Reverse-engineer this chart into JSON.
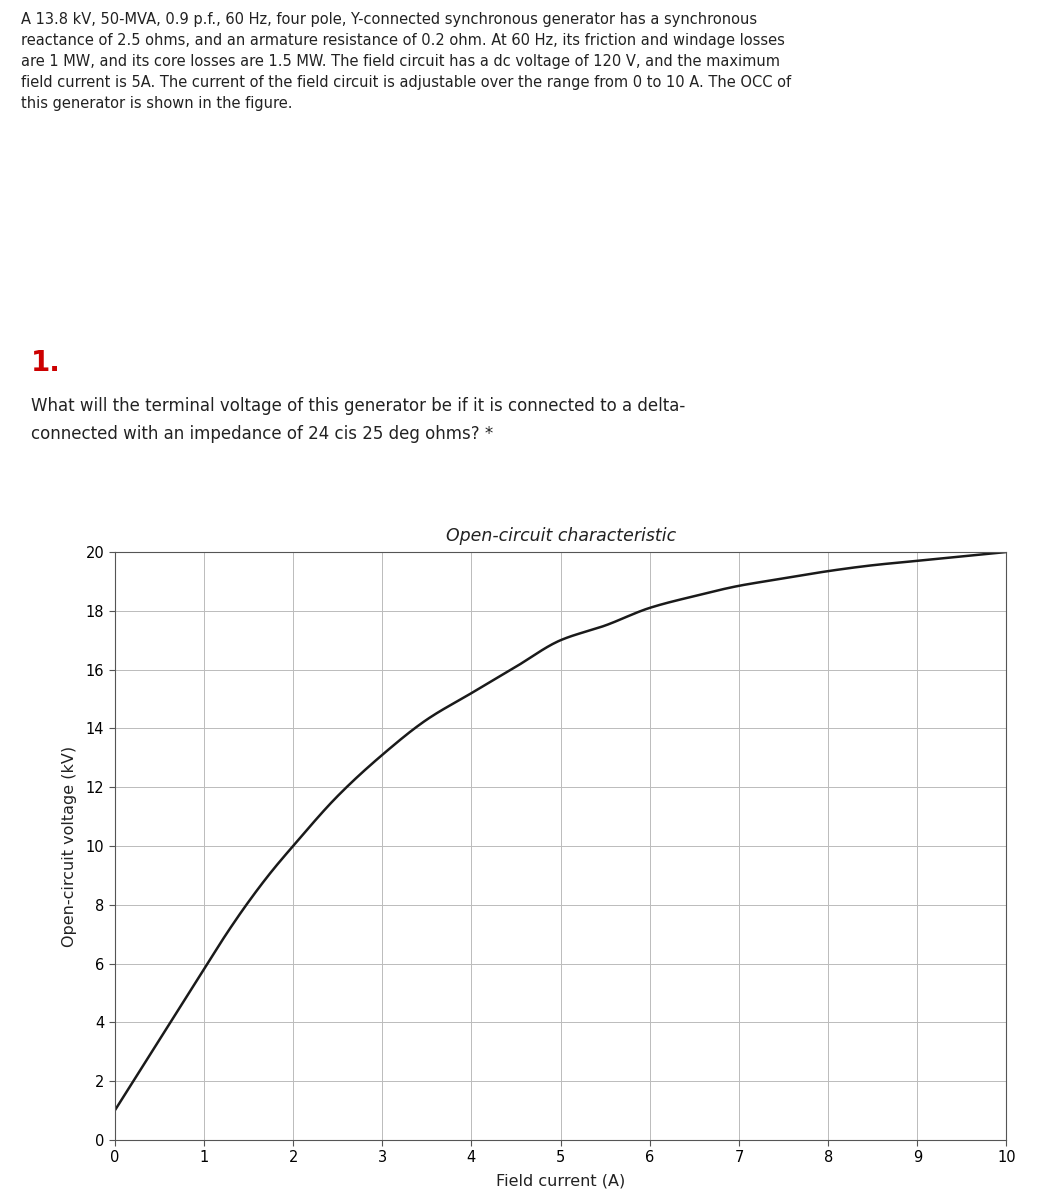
{
  "header_text": "A 13.8 kV, 50-MVA, 0.9 p.f., 60 Hz, four pole, Y-connected synchronous generator has a synchronous\nreactance of 2.5 ohms, and an armature resistance of 0.2 ohm. At 60 Hz, its friction and windage losses\nare 1 MW, and its core losses are 1.5 MW. The field circuit has a dc voltage of 120 V, and the maximum\nfield current is 5A. The current of the field circuit is adjustable over the range from 0 to 10 A. The OCC of\nthis generator is shown in the figure.",
  "question_number": "1.",
  "question_text": "What will the terminal voltage of this generator be if it is connected to a delta-\nconnected with an impedance of 24 cis 25 deg ohms? *",
  "chart_title": "Open-circuit characteristic",
  "xlabel": "Field current (A)",
  "ylabel": "Open-circuit voltage (kV)",
  "xlim": [
    0,
    10
  ],
  "ylim": [
    0,
    20
  ],
  "xticks": [
    0,
    1,
    2,
    3,
    4,
    5,
    6,
    7,
    8,
    9,
    10
  ],
  "yticks": [
    0,
    2,
    4,
    6,
    8,
    10,
    12,
    14,
    16,
    18,
    20
  ],
  "curve_color": "#1a1a1a",
  "grid_color": "#bbbbbb",
  "background_color": "#ffffff",
  "question_bg": "#ebebf3",
  "question_number_color": "#cc0000",
  "occ_x": [
    0,
    0.25,
    0.5,
    0.75,
    1.0,
    1.25,
    1.5,
    1.75,
    2.0,
    2.5,
    3.0,
    3.5,
    4.0,
    4.5,
    5.0,
    5.5,
    6.0,
    6.5,
    7.0,
    7.5,
    8.0,
    8.5,
    9.0,
    9.5,
    10.0
  ],
  "occ_y": [
    1.0,
    2.2,
    3.4,
    4.6,
    5.8,
    7.0,
    8.1,
    9.1,
    10.0,
    11.7,
    13.1,
    14.3,
    15.2,
    16.1,
    17.0,
    17.5,
    18.1,
    18.5,
    18.85,
    19.1,
    19.35,
    19.55,
    19.7,
    19.85,
    20.0
  ]
}
